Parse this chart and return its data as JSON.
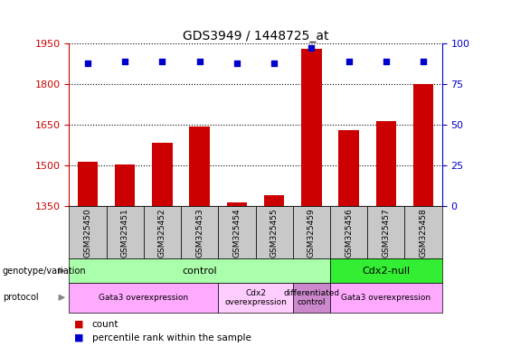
{
  "title": "GDS3949 / 1448725_at",
  "samples": [
    "GSM325450",
    "GSM325451",
    "GSM325452",
    "GSM325453",
    "GSM325454",
    "GSM325455",
    "GSM325459",
    "GSM325456",
    "GSM325457",
    "GSM325458"
  ],
  "counts": [
    1515,
    1505,
    1585,
    1645,
    1365,
    1390,
    1930,
    1630,
    1665,
    1800
  ],
  "percentiles": [
    88,
    89,
    89,
    89,
    88,
    88,
    97,
    89,
    89,
    89
  ],
  "ylim_left": [
    1350,
    1950
  ],
  "ylim_right": [
    0,
    100
  ],
  "yticks_left": [
    1350,
    1500,
    1650,
    1800,
    1950
  ],
  "yticks_right": [
    0,
    25,
    50,
    75,
    100
  ],
  "bar_color": "#cc0000",
  "dot_color": "#0000cc",
  "left_axis_color": "#cc0000",
  "right_axis_color": "#0000cc",
  "genotype_groups": [
    {
      "label": "control",
      "start": 0,
      "end": 7,
      "color": "#aaffaa"
    },
    {
      "label": "Cdx2-null",
      "start": 7,
      "end": 10,
      "color": "#33ee33"
    }
  ],
  "protocol_groups": [
    {
      "label": "Gata3 overexpression",
      "start": 0,
      "end": 4,
      "color": "#ffaaff"
    },
    {
      "label": "Cdx2\noverexpression",
      "start": 4,
      "end": 6,
      "color": "#ffccff"
    },
    {
      "label": "differentiated\ncontrol",
      "start": 6,
      "end": 7,
      "color": "#cc88cc"
    },
    {
      "label": "Gata3 overexpression",
      "start": 7,
      "end": 10,
      "color": "#ffaaff"
    }
  ],
  "legend_count_color": "#cc0000",
  "legend_dot_color": "#0000cc",
  "xlabels_bg": "#c8c8c8",
  "label_text_geno": "genotype/variation",
  "label_text_proto": "protocol"
}
